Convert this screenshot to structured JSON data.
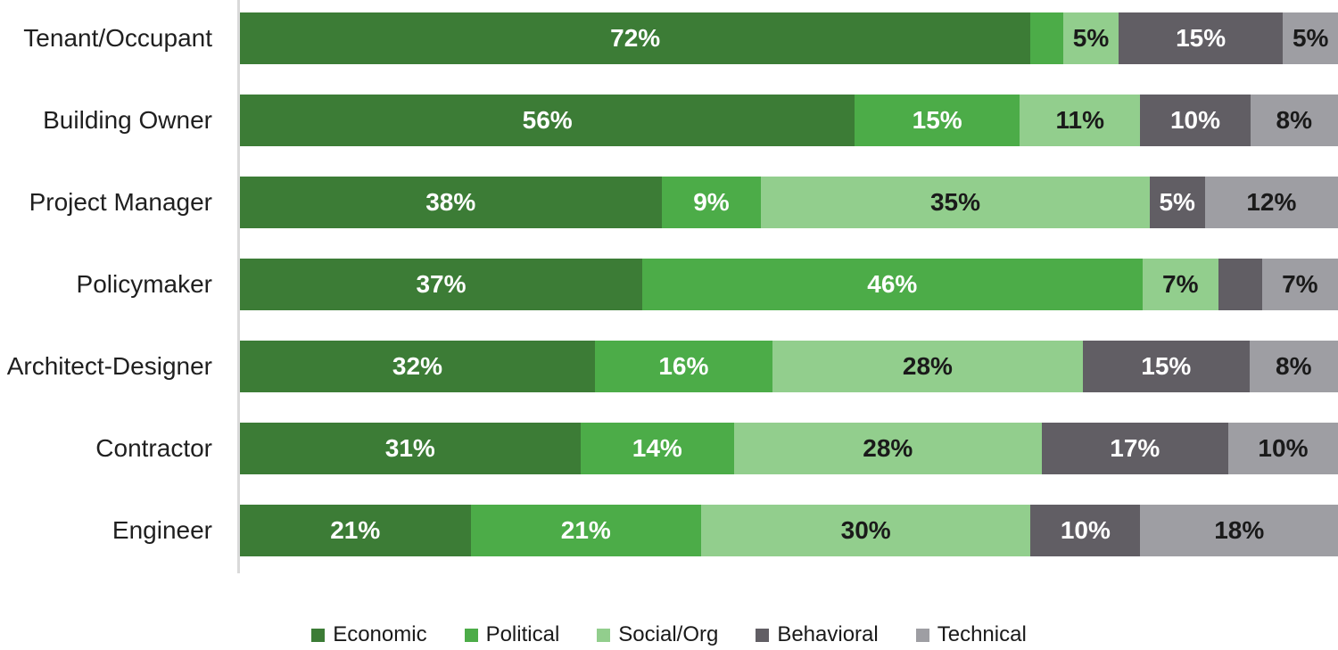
{
  "chart_data": {
    "type": "bar",
    "variant": "horizontal-stacked-100pct",
    "title": "",
    "xlabel": "",
    "ylabel": "",
    "grid": false,
    "legend_position": "bottom",
    "axis_line_color": "#d9d9d9",
    "min_label_value": 5,
    "value_suffix": "%",
    "categories": [
      "Tenant/Occupant",
      "Building Owner",
      "Project Manager",
      "Policymaker",
      "Architect-Designer",
      "Contractor",
      "Engineer"
    ],
    "series": [
      {
        "name": "Economic",
        "color": "#3c7c36",
        "text_color": "#ffffff",
        "values": [
          72,
          56,
          38,
          37,
          32,
          31,
          21
        ]
      },
      {
        "name": "Political",
        "color": "#4cac48",
        "text_color": "#ffffff",
        "values": [
          3,
          15,
          9,
          46,
          16,
          14,
          21
        ]
      },
      {
        "name": "Social/Org",
        "color": "#92ce8d",
        "text_color": "#1a1a1a",
        "values": [
          5,
          11,
          35,
          7,
          28,
          28,
          30
        ]
      },
      {
        "name": "Behavioral",
        "color": "#615e64",
        "text_color": "#ffffff",
        "values": [
          15,
          10,
          5,
          4,
          15,
          17,
          10
        ]
      },
      {
        "name": "Technical",
        "color": "#9e9ea3",
        "text_color": "#1a1a1a",
        "values": [
          5,
          8,
          12,
          7,
          8,
          10,
          18
        ]
      }
    ],
    "legend_labels": [
      "Economic",
      "Political",
      "Social/Org",
      "Behavioral",
      "Technical"
    ]
  }
}
